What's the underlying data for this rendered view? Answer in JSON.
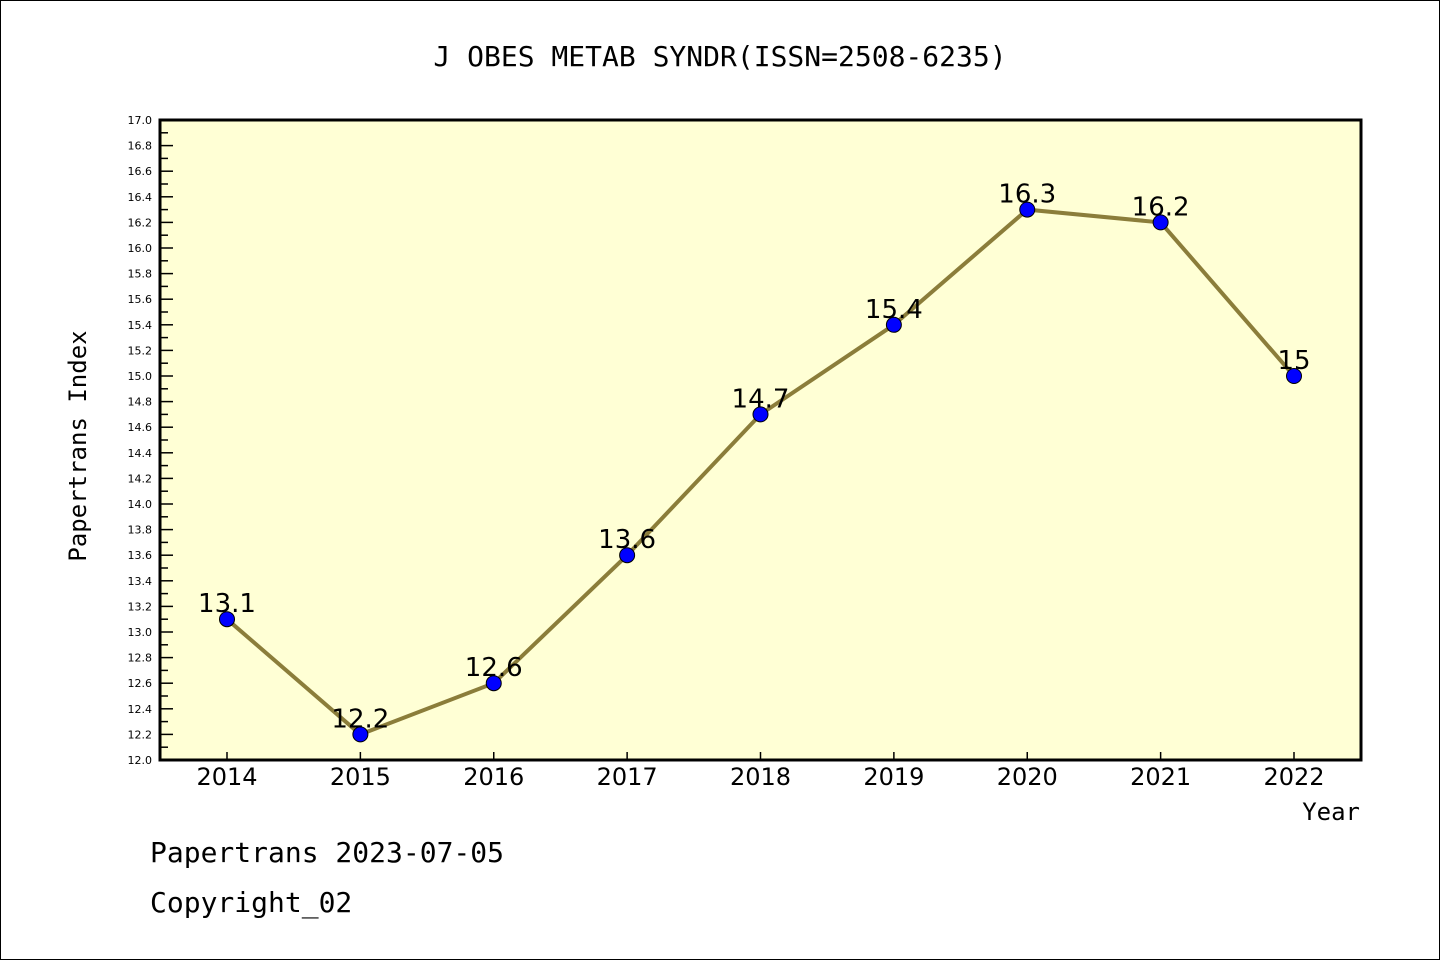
{
  "chart_data": {
    "type": "line",
    "title": "J OBES METAB SYNDR(ISSN=2508-6235)",
    "xlabel": "Year",
    "ylabel": "Papertrans Index",
    "x": [
      "2014",
      "2015",
      "2016",
      "2017",
      "2018",
      "2019",
      "2020",
      "2021",
      "2022"
    ],
    "values": [
      13.1,
      12.2,
      12.6,
      13.6,
      14.7,
      15.4,
      16.3,
      16.2,
      15.0
    ],
    "data_labels": [
      "13.1",
      "12.2",
      "12.6",
      "13.6",
      "14.7",
      "15.4",
      "16.3",
      "16.2",
      "15"
    ],
    "ylim": [
      12.0,
      17.0
    ],
    "ytick_step": 0.2,
    "grid": false,
    "colors": {
      "line": "#8B7D3A",
      "marker": "#0000FF",
      "plot_bg": "#FFFFD5"
    }
  },
  "footer": {
    "line1": "Papertrans 2023-07-05",
    "line2": "Copyright_02"
  }
}
